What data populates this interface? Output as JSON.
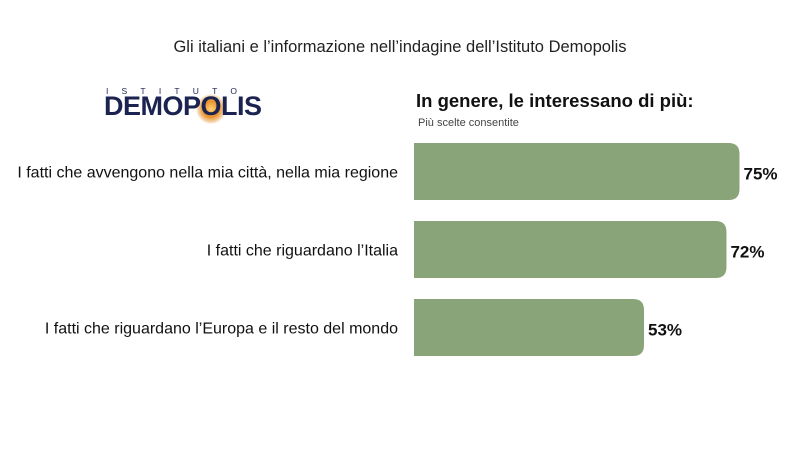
{
  "page": {
    "title": "Gli italiani e l’informazione nell’indagine dell’Istituto Demopolis"
  },
  "logo": {
    "upper_text": "ISTITUTO",
    "main_text": "DEMOPOLIS"
  },
  "chart_data": {
    "type": "bar",
    "orientation": "horizontal",
    "title": "In genere, le interessano di più:",
    "subtitle": "Più scelte consentite",
    "categories": [
      "I fatti che avvengono nella mia città, nella mia regione",
      "I fatti che riguardano l’Italia",
      "I fatti che riguardano l’Europa e il resto del mondo"
    ],
    "values": [
      75,
      72,
      53
    ],
    "value_labels": [
      "75%",
      "72%",
      "53%"
    ],
    "unit": "%",
    "xlim": [
      0,
      100
    ],
    "grid": false,
    "legend": "none",
    "bar_color": "#8aa47a"
  }
}
